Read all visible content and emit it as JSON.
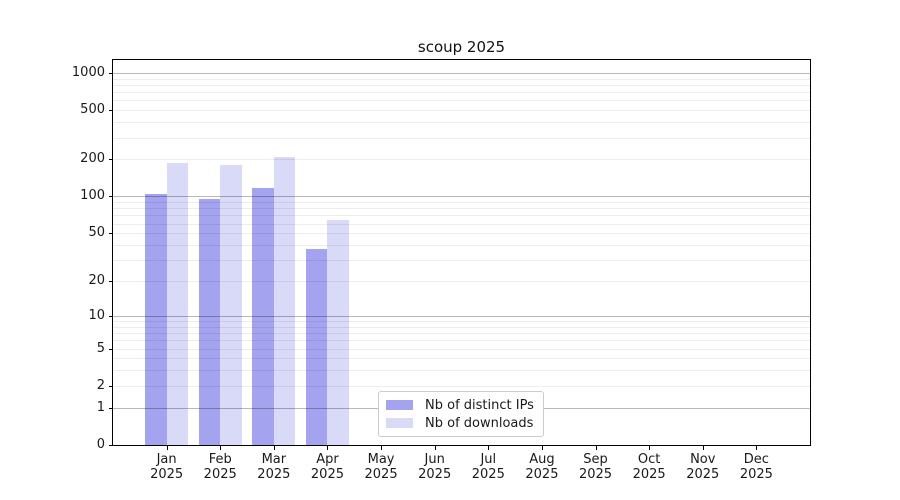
{
  "chart_data": {
    "type": "bar",
    "title": "scoup 2025",
    "categories": [
      "Jan",
      "Feb",
      "Mar",
      "Apr",
      "May",
      "Jun",
      "Jul",
      "Aug",
      "Sep",
      "Oct",
      "Nov",
      "Dec"
    ],
    "category_year": "2025",
    "series": [
      {
        "name": "Nb of distinct IPs",
        "color": "#a3a3ef",
        "values": [
          105,
          96,
          117,
          37,
          0,
          0,
          0,
          0,
          0,
          0,
          0,
          0
        ]
      },
      {
        "name": "Nb of downloads",
        "color": "#d9d9f8",
        "values": [
          187,
          179,
          208,
          64,
          0,
          0,
          0,
          0,
          0,
          0,
          0,
          0
        ]
      }
    ],
    "y_ticks": [
      0,
      1,
      2,
      5,
      10,
      20,
      50,
      100,
      200,
      500,
      1000
    ],
    "y_scale": "log(1+x)",
    "ylim": [
      0,
      1270
    ],
    "grid": true,
    "legend_position": "lower center-left",
    "background_color": "#ffffff",
    "major_grid_values": [
      1,
      10,
      100,
      1000
    ]
  }
}
